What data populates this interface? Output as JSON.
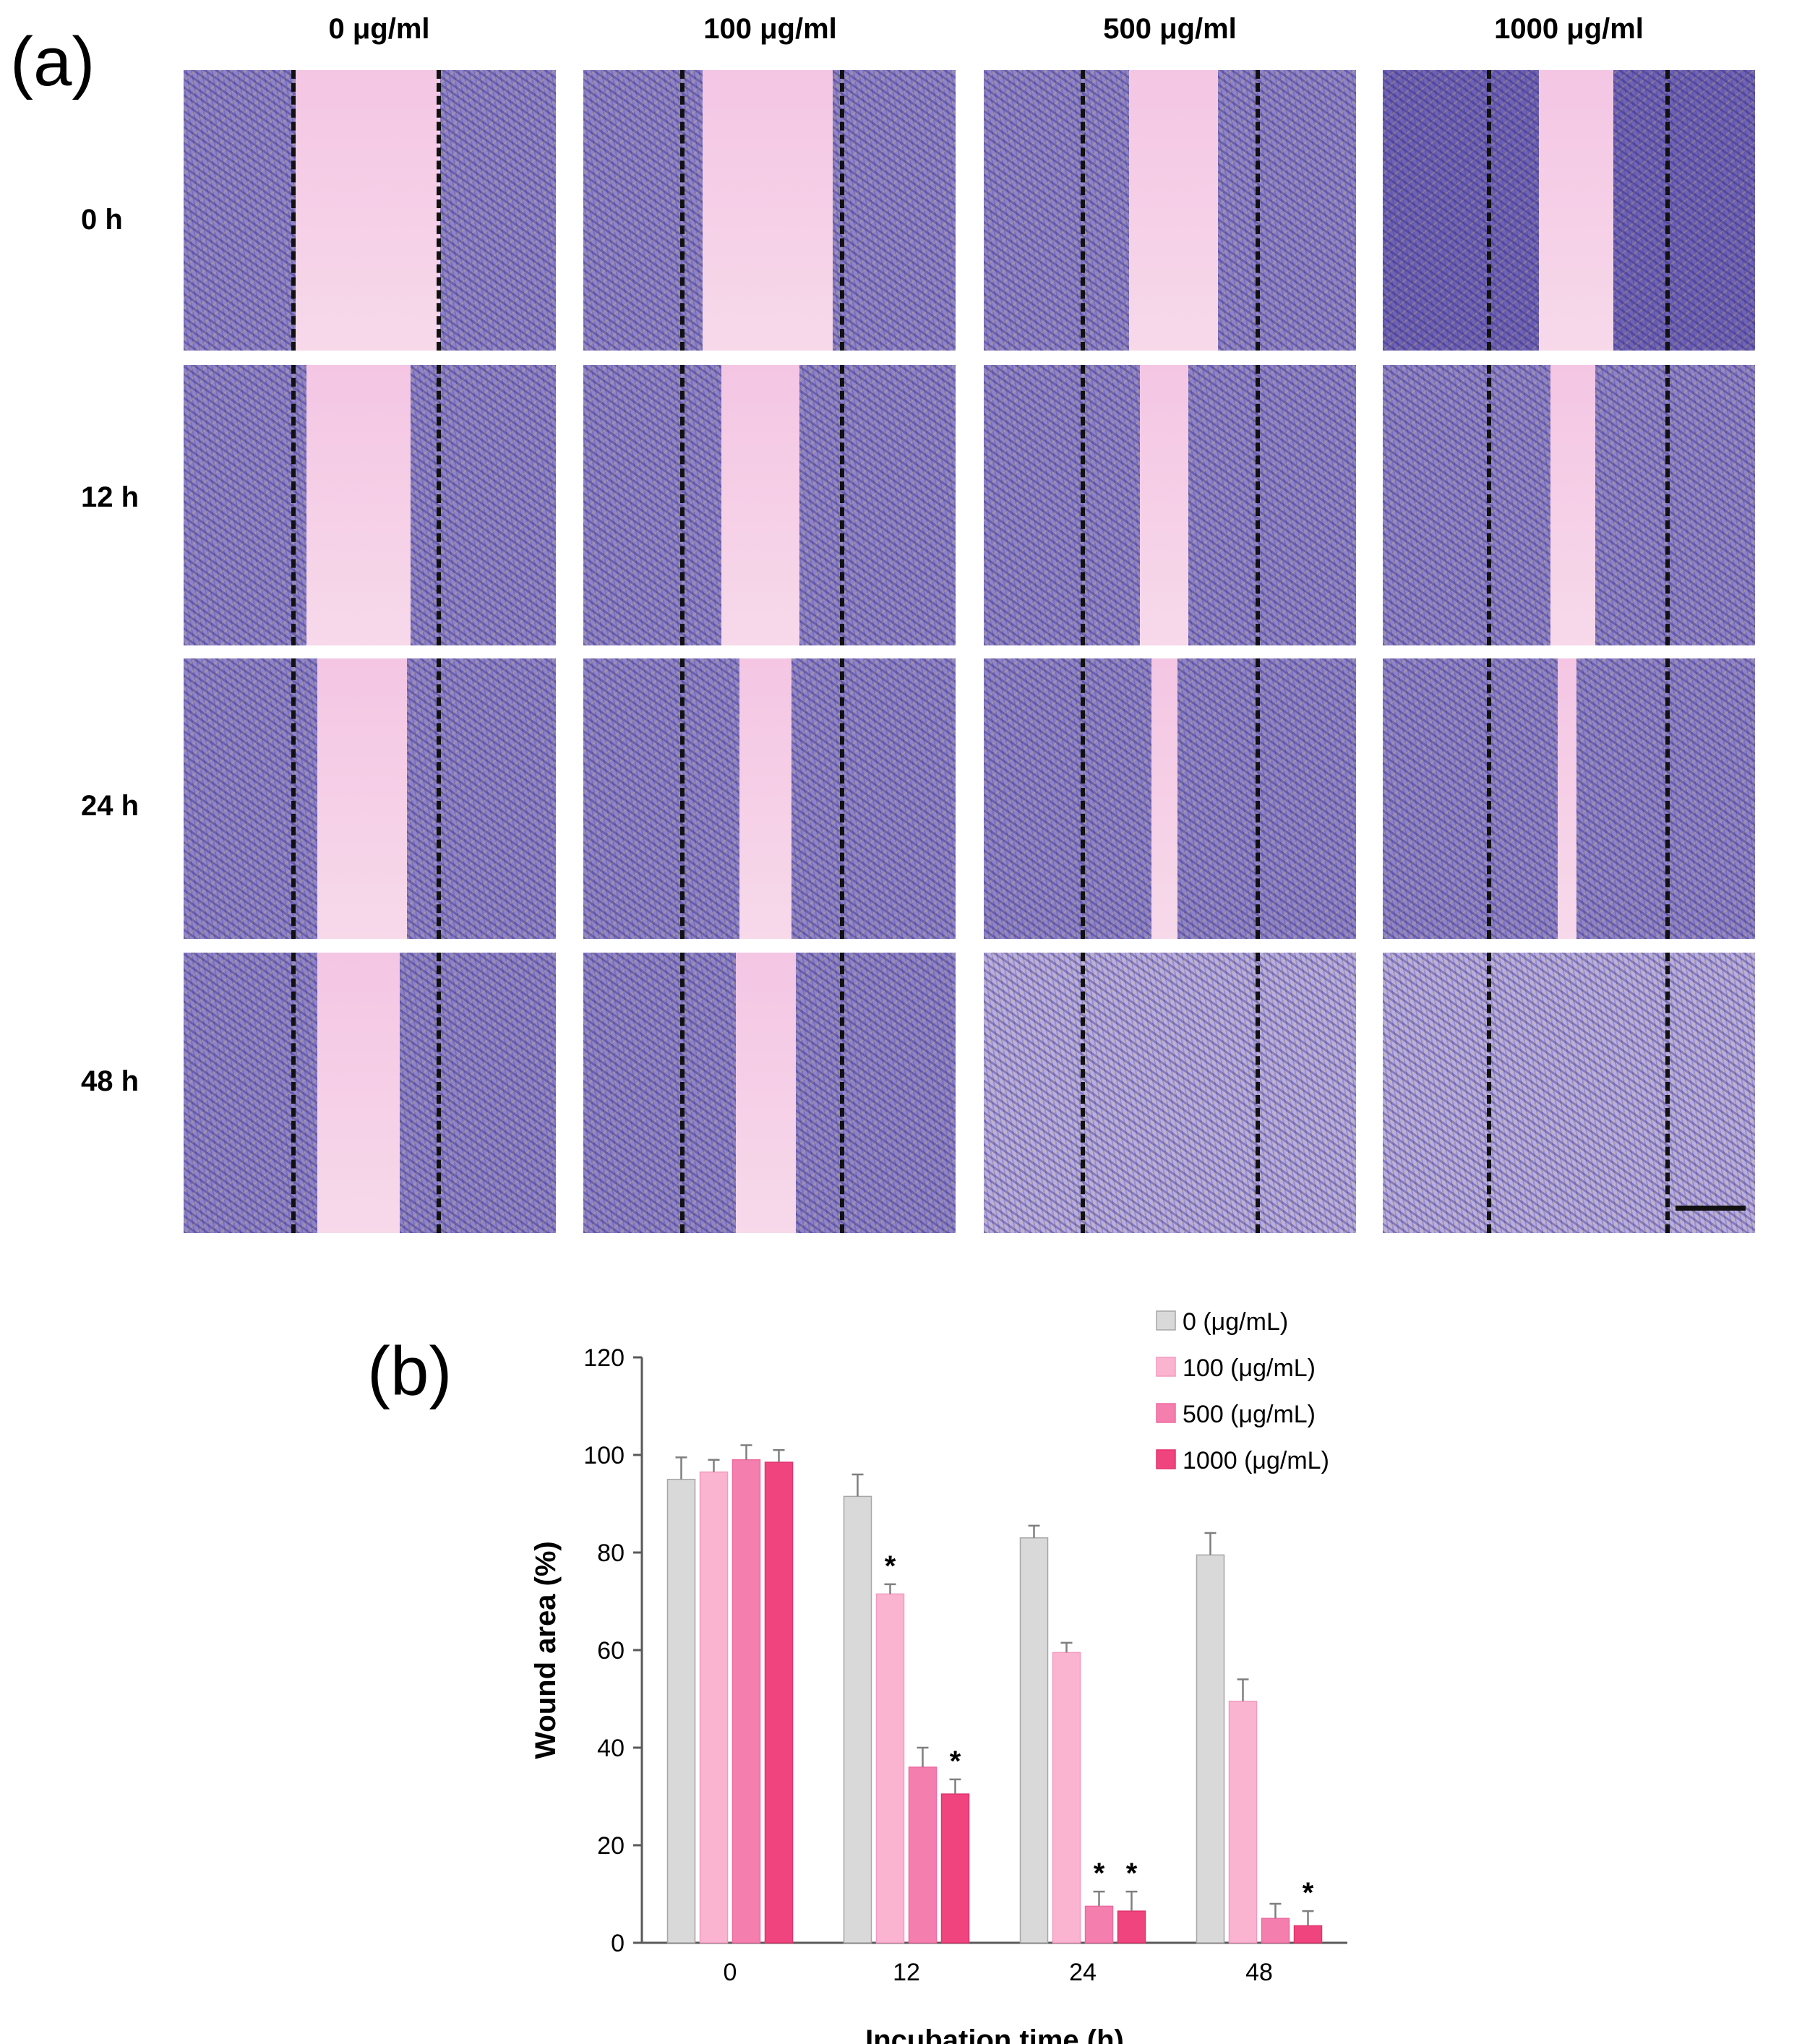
{
  "panel_a": {
    "label": "(a)",
    "column_headers": [
      "0 μg/ml",
      "100 μg/ml",
      "500 μg/ml",
      "1000 μg/ml"
    ],
    "row_labels": [
      "0 h",
      "12 h",
      "24 h",
      "48 h"
    ],
    "colors": {
      "cell_layer": "#8f84c8",
      "cell_layer_dense": "#6f63b5",
      "gap": "#f4c6e4",
      "gap_light": "#f7d9ea",
      "confluent": "#b9aee0"
    }
  },
  "panel_b": {
    "label": "(b)"
  },
  "chart_data": {
    "type": "bar",
    "title": "",
    "xlabel": "Incubation time (h)",
    "ylabel": "Wound area (%)",
    "ylim": [
      0,
      120
    ],
    "yticks": [
      "0",
      "20",
      "40",
      "60",
      "80",
      "100",
      "120"
    ],
    "categories": [
      "0",
      "12",
      "24",
      "48"
    ],
    "legend_position": "top-right",
    "series": [
      {
        "name": "0 (μg/mL)",
        "color": "#d9d9d9",
        "stroke": "#a6a6a6",
        "values": [
          95,
          91.5,
          83,
          79.5
        ],
        "errors": [
          4.5,
          4.5,
          2.5,
          4.5
        ],
        "significant": [
          false,
          false,
          false,
          false
        ]
      },
      {
        "name": "100 (μg/mL)",
        "color": "#fbb4d0",
        "stroke": "#f39ac0",
        "values": [
          96.5,
          71.5,
          59.5,
          49.5
        ],
        "errors": [
          2.5,
          2,
          2,
          4.5
        ],
        "significant": [
          false,
          true,
          false,
          false
        ]
      },
      {
        "name": "500 (μg/mL)",
        "color": "#f47fae",
        "stroke": "#ee6aa0",
        "values": [
          99,
          36,
          7.5,
          5
        ],
        "errors": [
          3,
          4,
          3,
          3
        ],
        "significant": [
          false,
          false,
          true,
          false
        ]
      },
      {
        "name": "1000 (μg/mL)",
        "color": "#f0447e",
        "stroke": "#e2336f",
        "values": [
          98.5,
          30.5,
          6.5,
          3.5
        ],
        "errors": [
          2.5,
          3,
          4,
          3
        ],
        "significant": [
          false,
          true,
          true,
          true
        ]
      }
    ],
    "significance_marker": "*"
  }
}
